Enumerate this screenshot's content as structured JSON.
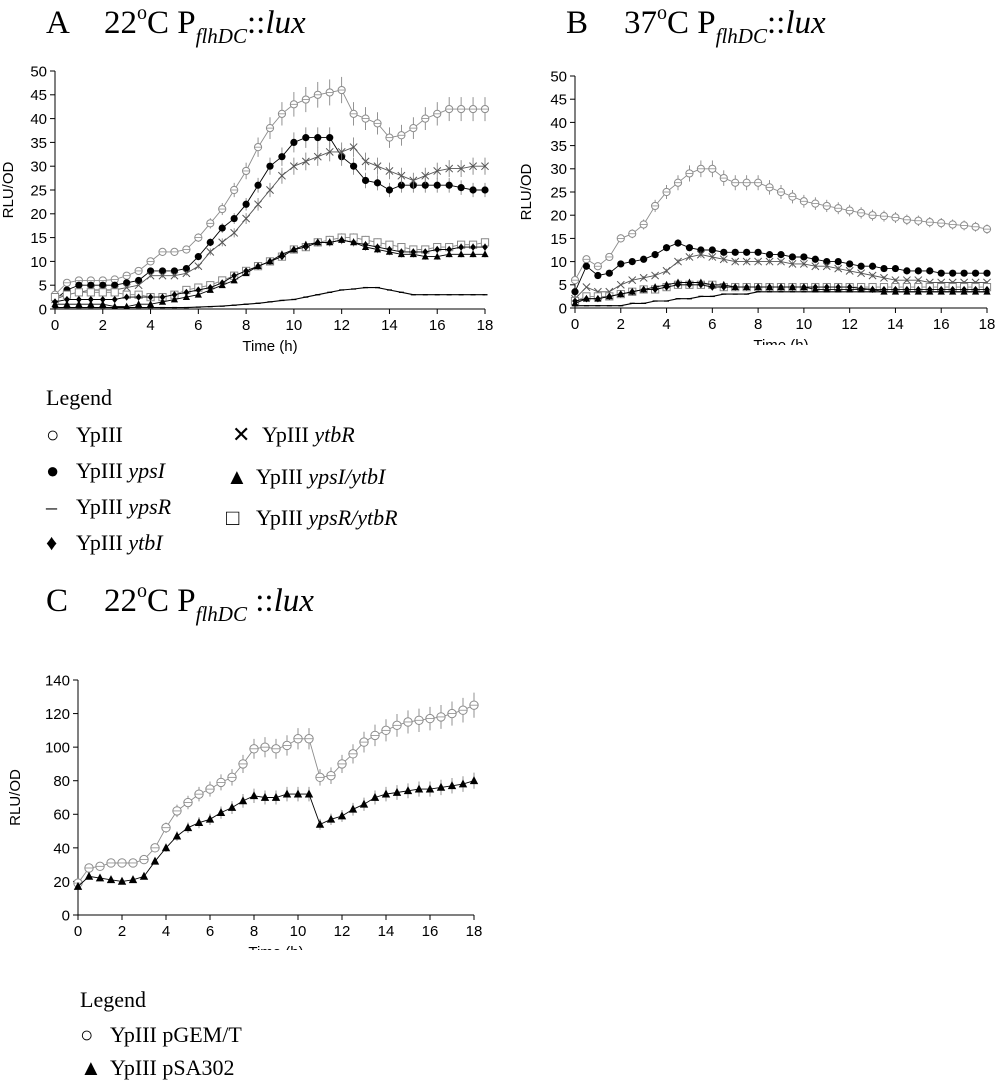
{
  "panels": {
    "a": {
      "letter": "A",
      "temp": "22",
      "deg": "o",
      "unit": "C P",
      "sub": "flhDC",
      "sep": "::",
      "gene": "lux"
    },
    "b": {
      "letter": "B",
      "temp": "37",
      "deg": "o",
      "unit": "C P",
      "sub": "flhDC",
      "sep": "::",
      "gene": "lux"
    },
    "c": {
      "letter": "C",
      "temp": "22",
      "deg": "o",
      "unit": "C P",
      "sub": "flhDC",
      "sep": " ::",
      "gene": "lux"
    }
  },
  "legend_ab": {
    "title": "Legend",
    "items": [
      {
        "symbol": "○",
        "plain": "YpIII",
        "italic": ""
      },
      {
        "symbol": "●",
        "plain": "YpIII ",
        "italic": "ypsI"
      },
      {
        "symbol": "–",
        "plain": "YpIII ",
        "italic": "ypsR"
      },
      {
        "symbol": "♦",
        "plain": "YpIII ",
        "italic": "ytbI"
      },
      {
        "symbol": "✕",
        "plain": "YpIII ",
        "italic": "ytbR"
      },
      {
        "symbol": "▲",
        "plain": "YpIII ",
        "italic": "ypsI/ytbI"
      },
      {
        "symbol": "□",
        "plain": "YpIII ",
        "italic": "ypsR/ytbR"
      }
    ]
  },
  "legend_c": {
    "title": "Legend",
    "items": [
      {
        "symbol": "○",
        "plain": "YpIII pGEM/T",
        "italic": ""
      },
      {
        "symbol": "▲",
        "plain": "YpIII pSA302",
        "italic": ""
      }
    ]
  },
  "chart_data": [
    {
      "type": "line",
      "title": "A 22°C PflhDC::lux",
      "xlabel": "Time (h)",
      "ylabel": "RLU/OD",
      "xlim": [
        0,
        18
      ],
      "ylim": [
        0,
        50
      ],
      "xticks": [
        0,
        2,
        4,
        6,
        8,
        10,
        12,
        14,
        16,
        18
      ],
      "yticks": [
        0,
        5,
        10,
        15,
        20,
        25,
        30,
        35,
        40,
        45,
        50
      ],
      "x": [
        0,
        0.5,
        1,
        1.5,
        2,
        2.5,
        3,
        3.5,
        4,
        4.5,
        5,
        5.5,
        6,
        6.5,
        7,
        7.5,
        8,
        8.5,
        9,
        9.5,
        10,
        10.5,
        11,
        11.5,
        12,
        12.5,
        13,
        13.5,
        14,
        14.5,
        15,
        15.5,
        16,
        16.5,
        17,
        17.5,
        18
      ],
      "series": [
        {
          "name": "YpIII",
          "marker": "open-circle",
          "color": "#8c8c8c",
          "values": [
            3,
            5.5,
            6,
            6,
            6,
            6.2,
            7,
            8,
            10,
            12,
            12,
            12.5,
            15,
            18,
            21,
            25,
            29,
            34,
            38,
            41,
            43,
            44,
            45,
            45.5,
            46,
            41,
            40,
            39,
            36,
            36.5,
            38,
            40,
            41,
            42,
            42,
            42,
            42
          ]
        },
        {
          "name": "YpIII ypsI",
          "marker": "filled-circle",
          "color": "#000000",
          "values": [
            2,
            4,
            5,
            5,
            5,
            5,
            5.5,
            6,
            8,
            8,
            8,
            8.5,
            11,
            14,
            17,
            19,
            22,
            26,
            30,
            32,
            35,
            36,
            36,
            36,
            32,
            30,
            27,
            26.5,
            25,
            26,
            26,
            26,
            26,
            26,
            25.5,
            25,
            25
          ]
        },
        {
          "name": "YpIII ytbR",
          "marker": "cross",
          "color": "#555555",
          "values": [
            2,
            3,
            3.5,
            4,
            4,
            4,
            4.5,
            5,
            7,
            7,
            7,
            7.5,
            9,
            12,
            14,
            16,
            19,
            22,
            25,
            28,
            30,
            31,
            32,
            33,
            33,
            34,
            31,
            30,
            29,
            28,
            27,
            28,
            29,
            29.5,
            29.5,
            30,
            30
          ]
        },
        {
          "name": "YpIII ypsR/ytbR",
          "marker": "open-square",
          "color": "#888888",
          "values": [
            2.5,
            3,
            3.5,
            3.5,
            3.5,
            3.5,
            3,
            3,
            2.5,
            2.5,
            3,
            4,
            4.5,
            5,
            6,
            7,
            8,
            9,
            10,
            11,
            12.5,
            13,
            14,
            14.5,
            15,
            15,
            14.5,
            14,
            13.5,
            13,
            12.5,
            12.5,
            13,
            13,
            13.5,
            13.5,
            14
          ]
        },
        {
          "name": "YpIII ytbI",
          "marker": "filled-diamond",
          "color": "#000000",
          "values": [
            1.5,
            2,
            2,
            2,
            2,
            2,
            2.5,
            2.5,
            2.5,
            2.5,
            3,
            3.5,
            4,
            4.5,
            5.5,
            7,
            8,
            9,
            10,
            11,
            12.5,
            13,
            14,
            14,
            14.5,
            14,
            13.5,
            13,
            12.5,
            12,
            12,
            12,
            12.5,
            12.5,
            13,
            13,
            13
          ]
        },
        {
          "name": "YpIII ypsI/ytbI",
          "marker": "filled-triangle",
          "color": "#000000",
          "values": [
            1,
            1,
            1,
            1,
            1,
            0.5,
            0.5,
            1,
            1,
            1.5,
            2,
            2.5,
            3,
            4,
            5,
            6,
            7.5,
            9,
            10,
            11.5,
            12.5,
            13.5,
            14,
            14,
            14.5,
            14,
            13,
            12.5,
            12,
            11.5,
            11.5,
            11,
            11,
            11.5,
            11.5,
            11.5,
            11.5
          ]
        },
        {
          "name": "YpIII ypsR",
          "marker": "dash",
          "color": "#000000",
          "values": [
            0.3,
            0.3,
            0.3,
            0.3,
            0.3,
            0.3,
            0.3,
            0.3,
            0.3,
            0.3,
            0.3,
            0.3,
            0.4,
            0.5,
            0.6,
            0.8,
            1,
            1.2,
            1.5,
            1.8,
            2,
            2.5,
            3,
            3.5,
            4,
            4.2,
            4.5,
            4.5,
            4,
            3.5,
            3,
            3,
            3,
            3,
            3,
            3,
            3
          ]
        }
      ]
    },
    {
      "type": "line",
      "title": "B 37°C PflhDC::lux",
      "xlabel": "Time (h)",
      "ylabel": "RLU/OD",
      "xlim": [
        0,
        18
      ],
      "ylim": [
        0,
        50
      ],
      "xticks": [
        0,
        2,
        4,
        6,
        8,
        10,
        12,
        14,
        16,
        18
      ],
      "yticks": [
        0,
        5,
        10,
        15,
        20,
        25,
        30,
        35,
        40,
        45,
        50
      ],
      "x": [
        0,
        0.5,
        1,
        1.5,
        2,
        2.5,
        3,
        3.5,
        4,
        4.5,
        5,
        5.5,
        6,
        6.5,
        7,
        7.5,
        8,
        8.5,
        9,
        9.5,
        10,
        10.5,
        11,
        11.5,
        12,
        12.5,
        13,
        13.5,
        14,
        14.5,
        15,
        15.5,
        16,
        16.5,
        17,
        17.5,
        18
      ],
      "series": [
        {
          "name": "YpIII",
          "marker": "open-circle",
          "color": "#8c8c8c",
          "values": [
            6,
            10.5,
            9,
            11,
            15,
            16,
            18,
            22,
            25,
            27,
            29,
            30,
            30,
            28,
            27,
            27,
            27,
            26,
            25,
            24,
            23,
            22.5,
            22,
            21.5,
            21,
            20.5,
            20,
            19.8,
            19.5,
            19,
            18.8,
            18.5,
            18.3,
            18,
            17.8,
            17.5,
            17
          ]
        },
        {
          "name": "YpIII ypsI",
          "marker": "filled-circle",
          "color": "#000000",
          "values": [
            3.5,
            9,
            7,
            7.5,
            9.5,
            10,
            10.5,
            11.5,
            13,
            14,
            13,
            12.5,
            12.5,
            12,
            12,
            12,
            12,
            11.5,
            11.5,
            11,
            11,
            10.5,
            10,
            10,
            9.5,
            9,
            9,
            8.5,
            8.5,
            8,
            8,
            8,
            7.5,
            7.5,
            7.5,
            7.5,
            7.5
          ]
        },
        {
          "name": "YpIII ytbR",
          "marker": "cross",
          "color": "#555555",
          "values": [
            2,
            4.5,
            3.5,
            3.5,
            5,
            6,
            6.5,
            7,
            8,
            10,
            11,
            11.5,
            11,
            10.5,
            10,
            10,
            10,
            10,
            10,
            9.5,
            9.5,
            9,
            9,
            8.5,
            8,
            7.5,
            7,
            6.5,
            6,
            6,
            6,
            5.5,
            5.5,
            5.5,
            5.5,
            5.5,
            5.5
          ]
        },
        {
          "name": "YpIII ypsR/ytbR",
          "marker": "open-square",
          "color": "#888888",
          "values": [
            1.5,
            2.5,
            2.5,
            2.5,
            3,
            3.5,
            4,
            4,
            4.5,
            5,
            5,
            5,
            5,
            4.5,
            4.5,
            4.5,
            4.5,
            4.5,
            4.5,
            4.5,
            4.5,
            4.5,
            4.5,
            4.5,
            4.5,
            4.5,
            4.5,
            4.5,
            4.5,
            4.5,
            4.5,
            4.5,
            4.5,
            4.5,
            4.5,
            4.5,
            4.5
          ]
        },
        {
          "name": "YpIII ytbI",
          "marker": "filled-diamond",
          "color": "#000000",
          "values": [
            1.5,
            2,
            2,
            2.5,
            3,
            3.5,
            4,
            4,
            4.5,
            5,
            5,
            5,
            4.5,
            4.5,
            4.5,
            4.5,
            4.5,
            4.5,
            4.5,
            4.5,
            4.5,
            4.5,
            4.5,
            4.5,
            4.5,
            4.2,
            4,
            4,
            4,
            4,
            4,
            4,
            4,
            4,
            4,
            4,
            4
          ]
        },
        {
          "name": "YpIII ypsI/ytbI",
          "marker": "filled-triangle",
          "color": "#000000",
          "values": [
            1,
            2,
            2,
            2.5,
            3,
            3.5,
            4,
            4.5,
            5,
            5.5,
            5.5,
            5.5,
            5,
            5,
            4.5,
            4.5,
            4.5,
            4.5,
            4.5,
            4.5,
            4.5,
            4,
            4,
            4,
            4,
            4,
            4,
            3.5,
            3.5,
            3.5,
            3.5,
            3.5,
            3.5,
            3.5,
            3.5,
            3.5,
            3.5
          ]
        },
        {
          "name": "YpIII ypsR",
          "marker": "dash",
          "color": "#000000",
          "values": [
            0.5,
            0.5,
            0.5,
            0.5,
            0.5,
            1,
            1,
            1.5,
            1.5,
            2,
            2,
            2.5,
            2.5,
            3,
            3,
            3,
            3.5,
            3.5,
            3.5,
            3.5,
            3.5,
            3.5,
            3.5,
            3.5,
            3.5,
            3.5,
            3.5,
            3.5,
            3.5,
            3.5,
            3.5,
            3.5,
            3.5,
            3.5,
            3.5,
            3.5,
            3.5
          ]
        }
      ]
    },
    {
      "type": "line",
      "title": "C 22°C PflhDC::lux",
      "xlabel": "Time (h)",
      "ylabel": "RLU/OD",
      "xlim": [
        0,
        18
      ],
      "ylim": [
        0,
        140
      ],
      "xticks": [
        0,
        2,
        4,
        6,
        8,
        10,
        12,
        14,
        16,
        18
      ],
      "yticks": [
        0,
        20,
        40,
        60,
        80,
        100,
        120,
        140
      ],
      "x": [
        0,
        0.5,
        1,
        1.5,
        2,
        2.5,
        3,
        3.5,
        4,
        4.5,
        5,
        5.5,
        6,
        6.5,
        7,
        7.5,
        8,
        8.5,
        9,
        9.5,
        10,
        10.5,
        11,
        11.5,
        12,
        12.5,
        13,
        13.5,
        14,
        14.5,
        15,
        15.5,
        16,
        16.5,
        17,
        17.5,
        18
      ],
      "series": [
        {
          "name": "YpIII pGEM/T",
          "marker": "open-circle",
          "color": "#8c8c8c",
          "values": [
            19,
            28,
            29,
            31,
            31,
            31,
            33,
            40,
            52,
            62,
            67,
            72,
            75,
            79,
            82,
            90,
            99,
            100,
            99,
            101,
            105,
            105,
            82,
            83,
            90,
            96,
            103,
            107,
            110,
            113,
            115,
            116,
            117,
            118,
            120,
            122,
            125
          ]
        },
        {
          "name": "YpIII pSA302",
          "marker": "filled-triangle",
          "color": "#000000",
          "values": [
            17,
            23,
            22,
            21,
            20,
            21,
            23,
            32,
            40,
            47,
            52,
            55,
            57,
            61,
            64,
            68,
            71,
            70,
            70,
            72,
            72,
            72,
            54,
            57,
            59,
            63,
            66,
            70,
            72,
            73,
            74,
            75,
            75,
            76,
            77,
            78,
            80
          ]
        }
      ]
    }
  ]
}
